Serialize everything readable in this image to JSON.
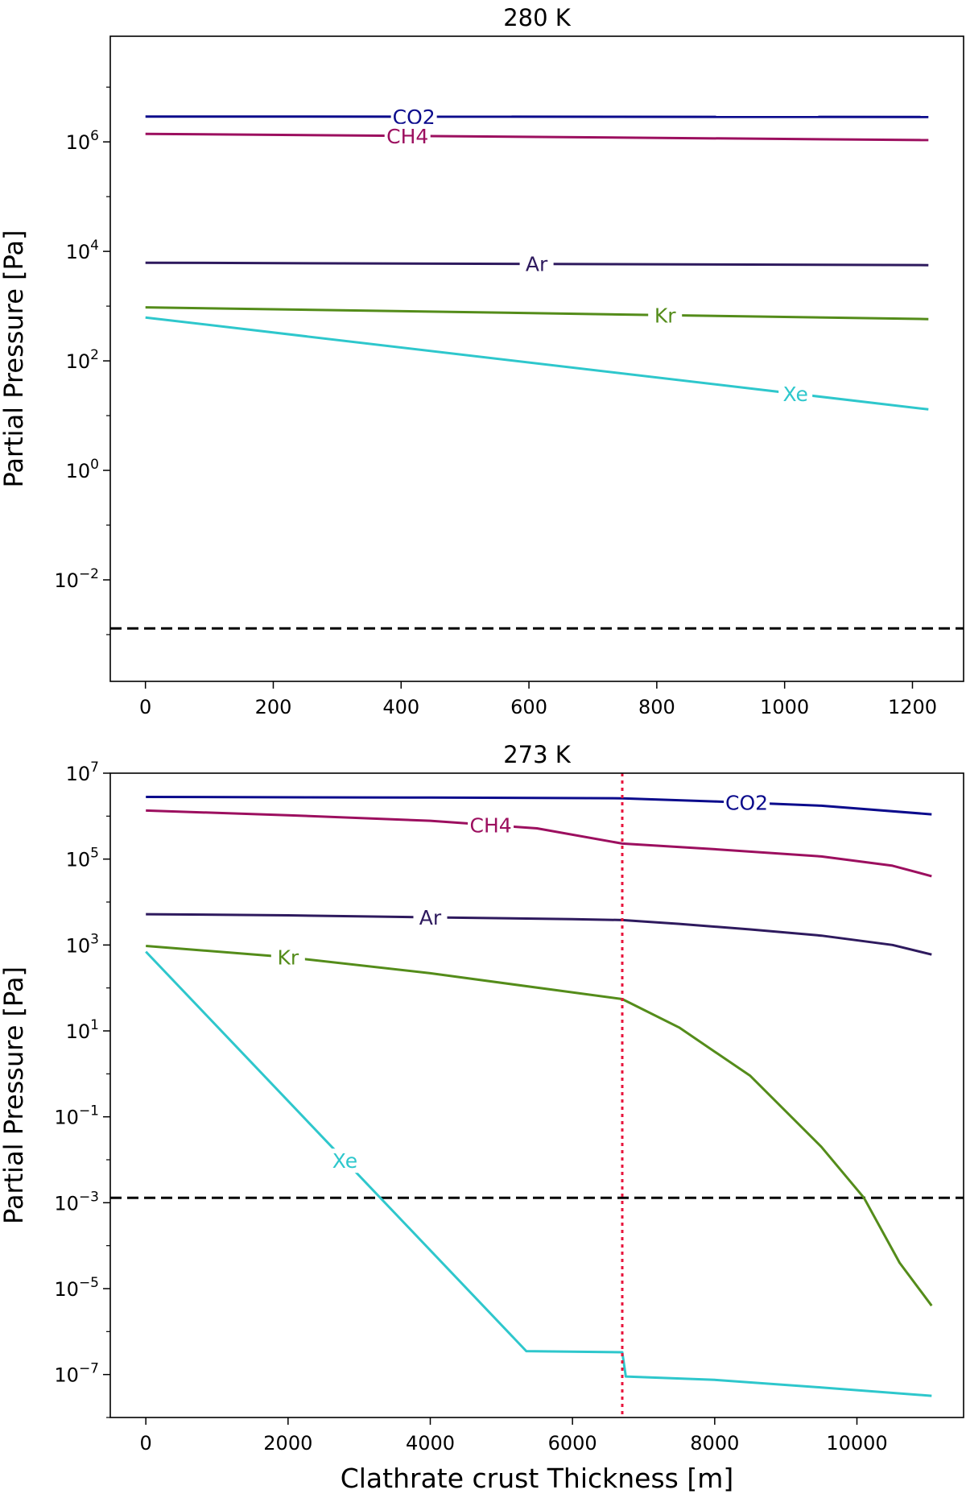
{
  "chart_data": [
    {
      "type": "line",
      "title": "280 K",
      "xlabel": "",
      "ylabel": "Partial Pressure [Pa]",
      "yscale": "log",
      "xlim": [
        -55,
        1280
      ],
      "ylim": [
        0.00014,
        85000000
      ],
      "xticks": [
        0,
        200,
        400,
        600,
        800,
        1000,
        1200
      ],
      "yticks": [
        {
          "exp": -2,
          "label": "10",
          "sup": "−2"
        },
        {
          "exp": 0,
          "label": "10",
          "sup": "0"
        },
        {
          "exp": 2,
          "label": "10",
          "sup": "2"
        },
        {
          "exp": 4,
          "label": "10",
          "sup": "4"
        },
        {
          "exp": 6,
          "label": "10",
          "sup": "6"
        }
      ],
      "hlines": [
        {
          "y": 0.0013,
          "style": "dashed",
          "color": "#000000"
        }
      ],
      "vlines": [],
      "series": [
        {
          "name": "CO2",
          "color": "#0b0b8c",
          "label_x": 420,
          "x": [
            0,
            1225
          ],
          "y": [
            2900000,
            2850000
          ]
        },
        {
          "name": "CH4",
          "color": "#9c0f5f",
          "label_x": 410,
          "x": [
            0,
            1225
          ],
          "y": [
            1400000,
            1080000
          ]
        },
        {
          "name": "Ar",
          "color": "#2e1a5e",
          "label_x": 612,
          "x": [
            0,
            1225
          ],
          "y": [
            6200,
            5600
          ]
        },
        {
          "name": "Kr",
          "color": "#548c1a",
          "label_x": 813,
          "x": [
            0,
            1225
          ],
          "y": [
            950,
            580
          ]
        },
        {
          "name": "Xe",
          "color": "#2ec7cc",
          "label_x": 1017,
          "x": [
            0,
            1225
          ],
          "y": [
            620,
            13
          ]
        }
      ]
    },
    {
      "type": "line",
      "title": "273 K",
      "xlabel": "Clathrate crust Thickness [m]",
      "ylabel": "Partial Pressure [Pa]",
      "yscale": "log",
      "xlim": [
        -500,
        11500
      ],
      "ylim": [
        1e-08,
        10000000
      ],
      "xticks": [
        0,
        2000,
        4000,
        6000,
        8000,
        10000
      ],
      "yticks": [
        {
          "exp": -7,
          "label": "10",
          "sup": "−7"
        },
        {
          "exp": -5,
          "label": "10",
          "sup": "−5"
        },
        {
          "exp": -3,
          "label": "10",
          "sup": "−3"
        },
        {
          "exp": -1,
          "label": "10",
          "sup": "−1"
        },
        {
          "exp": 1,
          "label": "10",
          "sup": "1"
        },
        {
          "exp": 3,
          "label": "10",
          "sup": "3"
        },
        {
          "exp": 5,
          "label": "10",
          "sup": "5"
        },
        {
          "exp": 7,
          "label": "10",
          "sup": "7"
        }
      ],
      "hlines": [
        {
          "y": 0.0013,
          "style": "dashed",
          "color": "#000000"
        }
      ],
      "vlines": [
        {
          "x": 6700,
          "style": "dotted",
          "color": "#e8143c"
        }
      ],
      "series": [
        {
          "name": "CO2",
          "color": "#0b0b8c",
          "label_x": 8450,
          "x": [
            0,
            4000,
            6700,
            8000,
            9500,
            11050
          ],
          "y": [
            2800000,
            2700000,
            2600000,
            2200000,
            1750000,
            1100000
          ]
        },
        {
          "name": "CH4",
          "color": "#9c0f5f",
          "label_x": 4850,
          "x": [
            0,
            2000,
            4000,
            5500,
            6700,
            8000,
            9500,
            10500,
            11050
          ],
          "y": [
            1350000,
            1050000,
            780000,
            520000,
            230000,
            170000,
            115000,
            70000,
            40000
          ]
        },
        {
          "name": "Ar",
          "color": "#2e1a5e",
          "label_x": 4000,
          "x": [
            0,
            2000,
            4000,
            6000,
            6700,
            7500,
            8500,
            9500,
            10500,
            11050
          ],
          "y": [
            5200,
            4900,
            4400,
            4000,
            3800,
            3100,
            2300,
            1650,
            1000,
            600
          ]
        },
        {
          "name": "Kr",
          "color": "#548c1a",
          "label_x": 2000,
          "x": [
            0,
            2000,
            4000,
            6700,
            7500,
            8500,
            9500,
            10100,
            10600,
            11050
          ],
          "y": [
            950,
            520,
            220,
            55,
            12,
            0.9,
            0.02,
            0.0013,
            4e-05,
            4e-06
          ]
        },
        {
          "name": "Xe",
          "color": "#2ec7cc",
          "label_x": 2800,
          "x": [
            0,
            5350,
            6700,
            6750,
            8000,
            9500,
            11050
          ],
          "y": [
            700,
            3.5e-07,
            3.3e-07,
            9e-08,
            7.5e-08,
            5e-08,
            3.2e-08
          ]
        }
      ]
    }
  ]
}
